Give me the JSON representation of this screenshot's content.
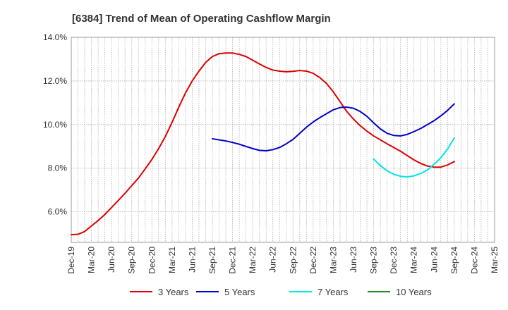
{
  "chart_data": {
    "type": "line",
    "title": "[6384]  Trend of Mean of Operating Cashflow Margin",
    "xlabel": "",
    "ylabel": "",
    "x_ticks": [
      "Dec-19",
      "Mar-20",
      "Jun-20",
      "Sep-20",
      "Dec-20",
      "Mar-21",
      "Jun-21",
      "Sep-21",
      "Dec-21",
      "Mar-22",
      "Jun-22",
      "Sep-22",
      "Dec-22",
      "Mar-23",
      "Jun-23",
      "Sep-23",
      "Dec-23",
      "Mar-24",
      "Jun-24",
      "Sep-24",
      "Dec-24",
      "Mar-25"
    ],
    "y_ticks": [
      "6.0%",
      "8.0%",
      "10.0%",
      "12.0%",
      "14.0%"
    ],
    "y_tick_values": [
      6,
      8,
      10,
      12,
      14
    ],
    "ylim": [
      4.6,
      14
    ],
    "grid": true,
    "legend_position": "bottom",
    "series": [
      {
        "name": "3 Years",
        "color": "#dd0000",
        "x": [
          "Dec-19",
          "Jan-20",
          "Feb-20",
          "Mar-20",
          "Apr-20",
          "May-20",
          "Jun-20",
          "Jul-20",
          "Aug-20",
          "Sep-20",
          "Oct-20",
          "Nov-20",
          "Dec-20",
          "Jan-21",
          "Feb-21",
          "Mar-21",
          "Apr-21",
          "May-21",
          "Jun-21",
          "Jul-21",
          "Aug-21",
          "Sep-21",
          "Oct-21",
          "Nov-21",
          "Dec-21",
          "Jan-22",
          "Feb-22",
          "Mar-22",
          "Apr-22",
          "May-22",
          "Jun-22",
          "Jul-22",
          "Aug-22",
          "Sep-22",
          "Oct-22",
          "Nov-22",
          "Dec-22",
          "Jan-23",
          "Feb-23",
          "Mar-23",
          "Apr-23",
          "May-23",
          "Jun-23",
          "Jul-23",
          "Aug-23",
          "Sep-23",
          "Oct-23",
          "Nov-23",
          "Dec-23",
          "Jan-24",
          "Feb-24",
          "Mar-24",
          "Apr-24",
          "May-24",
          "Jun-24",
          "Jul-24",
          "Aug-24",
          "Sep-24"
        ],
        "values": [
          4.95,
          4.97,
          5.1,
          5.35,
          5.6,
          5.88,
          6.2,
          6.52,
          6.85,
          7.2,
          7.55,
          7.97,
          8.4,
          8.9,
          9.45,
          10.1,
          10.8,
          11.45,
          12.0,
          12.45,
          12.85,
          13.12,
          13.25,
          13.28,
          13.28,
          13.22,
          13.12,
          12.95,
          12.78,
          12.62,
          12.5,
          12.45,
          12.42,
          12.44,
          12.48,
          12.45,
          12.35,
          12.15,
          11.88,
          11.5,
          11.05,
          10.6,
          10.25,
          9.95,
          9.7,
          9.48,
          9.3,
          9.12,
          8.95,
          8.78,
          8.58,
          8.38,
          8.22,
          8.1,
          8.05,
          8.05,
          8.15,
          8.3
        ]
      },
      {
        "name": "5 Years",
        "color": "#0000cc",
        "x": [
          "Sep-21",
          "Oct-21",
          "Nov-21",
          "Dec-21",
          "Jan-22",
          "Feb-22",
          "Mar-22",
          "Apr-22",
          "May-22",
          "Jun-22",
          "Jul-22",
          "Aug-22",
          "Sep-22",
          "Oct-22",
          "Nov-22",
          "Dec-22",
          "Jan-23",
          "Feb-23",
          "Mar-23",
          "Apr-23",
          "May-23",
          "Jun-23",
          "Jul-23",
          "Aug-23",
          "Sep-23",
          "Oct-23",
          "Nov-23",
          "Dec-23",
          "Jan-24",
          "Feb-24",
          "Mar-24",
          "Apr-24",
          "May-24",
          "Jun-24",
          "Jul-24",
          "Aug-24",
          "Sep-24"
        ],
        "values": [
          9.35,
          9.3,
          9.25,
          9.18,
          9.1,
          9.0,
          8.9,
          8.82,
          8.8,
          8.85,
          8.95,
          9.12,
          9.32,
          9.6,
          9.88,
          10.12,
          10.32,
          10.5,
          10.68,
          10.78,
          10.8,
          10.75,
          10.6,
          10.38,
          10.08,
          9.8,
          9.6,
          9.5,
          9.48,
          9.55,
          9.68,
          9.82,
          10.0,
          10.18,
          10.4,
          10.65,
          10.95
        ]
      },
      {
        "name": "7 Years",
        "color": "#00e5e5",
        "x": [
          "Sep-23",
          "Oct-23",
          "Nov-23",
          "Dec-23",
          "Jan-24",
          "Feb-24",
          "Mar-24",
          "Apr-24",
          "May-24",
          "Jun-24",
          "Jul-24",
          "Aug-24",
          "Sep-24"
        ],
        "values": [
          8.42,
          8.12,
          7.88,
          7.72,
          7.63,
          7.6,
          7.65,
          7.76,
          7.92,
          8.18,
          8.48,
          8.88,
          9.38
        ]
      },
      {
        "name": "10 Years",
        "color": "#228822",
        "x": [],
        "values": []
      }
    ]
  }
}
